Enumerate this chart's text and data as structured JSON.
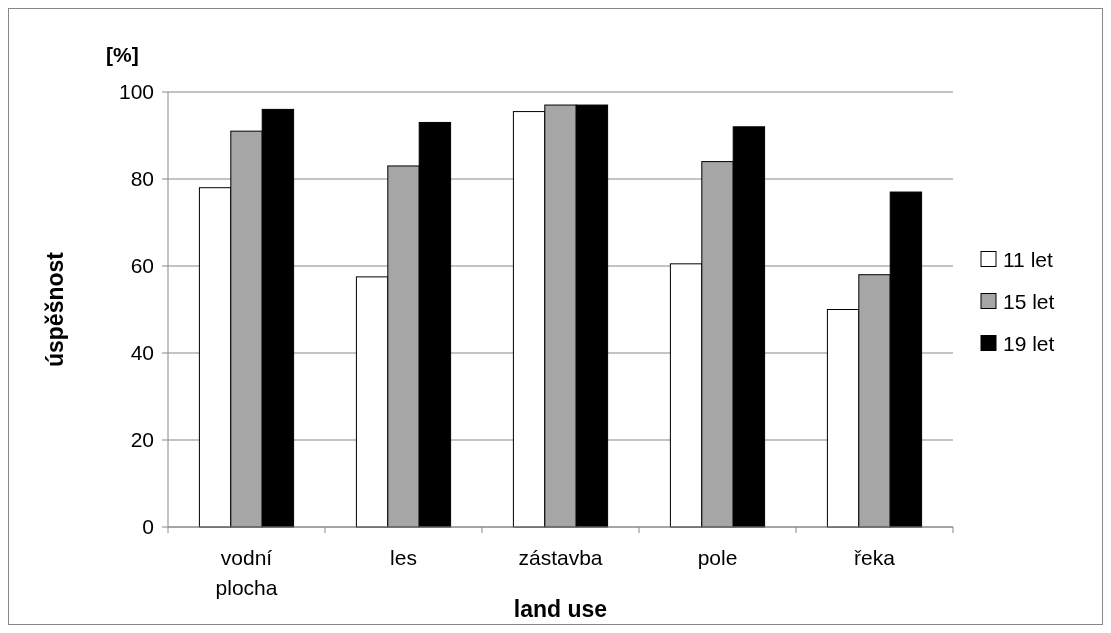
{
  "chart_data": {
    "type": "bar",
    "xlabel": "land use",
    "ylabel": "úspěšnost",
    "annotations": [
      "[%]"
    ],
    "categories": [
      "vodní plocha",
      "les",
      "zástavba",
      "pole",
      "řeka"
    ],
    "series": [
      {
        "name": "11 let",
        "color": "#ffffff",
        "values": [
          78,
          57.5,
          95.5,
          60.5,
          50
        ]
      },
      {
        "name": "15 let",
        "color": "#a6a6a6",
        "values": [
          91,
          83,
          97,
          84,
          58
        ]
      },
      {
        "name": "19 let",
        "color": "#000000",
        "values": [
          96,
          93,
          97,
          92,
          77
        ]
      }
    ],
    "ylim": [
      0,
      100
    ],
    "yticks": [
      0,
      20,
      40,
      60,
      80,
      100
    ],
    "grid": "y",
    "legend": "right"
  }
}
